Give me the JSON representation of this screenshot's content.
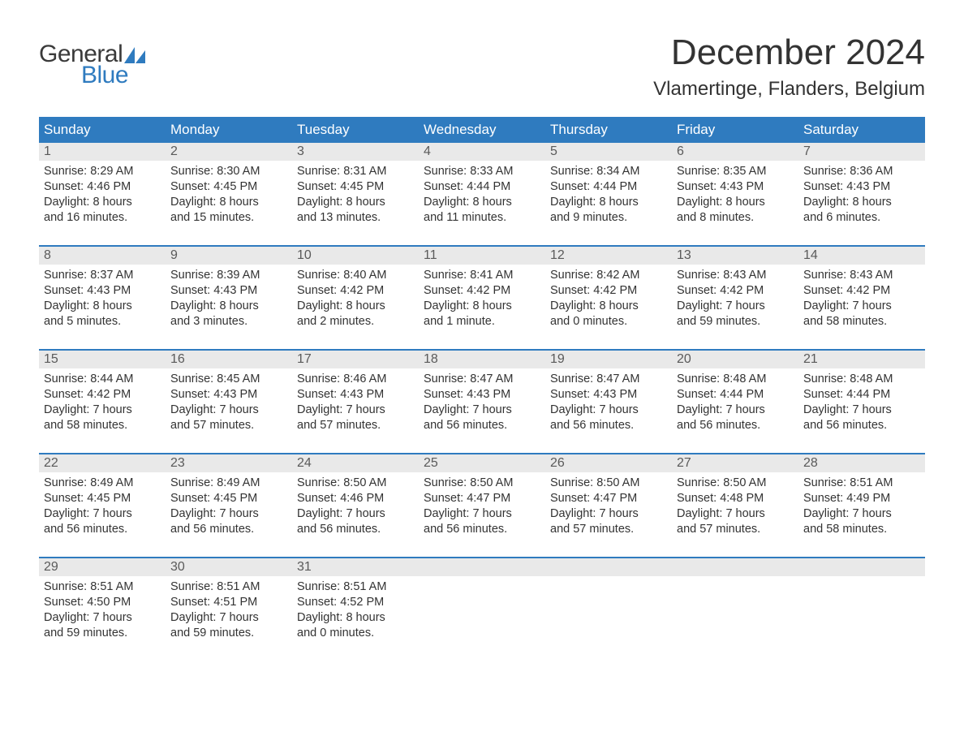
{
  "brand": {
    "word1": "General",
    "word2": "Blue",
    "sail_color": "#2f7bbf",
    "text_gray": "#3a3a3a"
  },
  "title": "December 2024",
  "location": "Vlamertinge, Flanders, Belgium",
  "colors": {
    "header_bg": "#2f7bbf",
    "header_text": "#ffffff",
    "daynum_bg": "#e9e9e9",
    "daynum_text": "#5a5a5a",
    "body_text": "#333333",
    "week_border": "#2f7bbf",
    "page_bg": "#ffffff"
  },
  "fonts": {
    "title_size": 44,
    "location_size": 24,
    "header_size": 17,
    "body_size": 14.5
  },
  "day_headers": [
    "Sunday",
    "Monday",
    "Tuesday",
    "Wednesday",
    "Thursday",
    "Friday",
    "Saturday"
  ],
  "weeks": [
    [
      {
        "n": "1",
        "sr": "Sunrise: 8:29 AM",
        "ss": "Sunset: 4:46 PM",
        "d1": "Daylight: 8 hours",
        "d2": "and 16 minutes."
      },
      {
        "n": "2",
        "sr": "Sunrise: 8:30 AM",
        "ss": "Sunset: 4:45 PM",
        "d1": "Daylight: 8 hours",
        "d2": "and 15 minutes."
      },
      {
        "n": "3",
        "sr": "Sunrise: 8:31 AM",
        "ss": "Sunset: 4:45 PM",
        "d1": "Daylight: 8 hours",
        "d2": "and 13 minutes."
      },
      {
        "n": "4",
        "sr": "Sunrise: 8:33 AM",
        "ss": "Sunset: 4:44 PM",
        "d1": "Daylight: 8 hours",
        "d2": "and 11 minutes."
      },
      {
        "n": "5",
        "sr": "Sunrise: 8:34 AM",
        "ss": "Sunset: 4:44 PM",
        "d1": "Daylight: 8 hours",
        "d2": "and 9 minutes."
      },
      {
        "n": "6",
        "sr": "Sunrise: 8:35 AM",
        "ss": "Sunset: 4:43 PM",
        "d1": "Daylight: 8 hours",
        "d2": "and 8 minutes."
      },
      {
        "n": "7",
        "sr": "Sunrise: 8:36 AM",
        "ss": "Sunset: 4:43 PM",
        "d1": "Daylight: 8 hours",
        "d2": "and 6 minutes."
      }
    ],
    [
      {
        "n": "8",
        "sr": "Sunrise: 8:37 AM",
        "ss": "Sunset: 4:43 PM",
        "d1": "Daylight: 8 hours",
        "d2": "and 5 minutes."
      },
      {
        "n": "9",
        "sr": "Sunrise: 8:39 AM",
        "ss": "Sunset: 4:43 PM",
        "d1": "Daylight: 8 hours",
        "d2": "and 3 minutes."
      },
      {
        "n": "10",
        "sr": "Sunrise: 8:40 AM",
        "ss": "Sunset: 4:42 PM",
        "d1": "Daylight: 8 hours",
        "d2": "and 2 minutes."
      },
      {
        "n": "11",
        "sr": "Sunrise: 8:41 AM",
        "ss": "Sunset: 4:42 PM",
        "d1": "Daylight: 8 hours",
        "d2": "and 1 minute."
      },
      {
        "n": "12",
        "sr": "Sunrise: 8:42 AM",
        "ss": "Sunset: 4:42 PM",
        "d1": "Daylight: 8 hours",
        "d2": "and 0 minutes."
      },
      {
        "n": "13",
        "sr": "Sunrise: 8:43 AM",
        "ss": "Sunset: 4:42 PM",
        "d1": "Daylight: 7 hours",
        "d2": "and 59 minutes."
      },
      {
        "n": "14",
        "sr": "Sunrise: 8:43 AM",
        "ss": "Sunset: 4:42 PM",
        "d1": "Daylight: 7 hours",
        "d2": "and 58 minutes."
      }
    ],
    [
      {
        "n": "15",
        "sr": "Sunrise: 8:44 AM",
        "ss": "Sunset: 4:42 PM",
        "d1": "Daylight: 7 hours",
        "d2": "and 58 minutes."
      },
      {
        "n": "16",
        "sr": "Sunrise: 8:45 AM",
        "ss": "Sunset: 4:43 PM",
        "d1": "Daylight: 7 hours",
        "d2": "and 57 minutes."
      },
      {
        "n": "17",
        "sr": "Sunrise: 8:46 AM",
        "ss": "Sunset: 4:43 PM",
        "d1": "Daylight: 7 hours",
        "d2": "and 57 minutes."
      },
      {
        "n": "18",
        "sr": "Sunrise: 8:47 AM",
        "ss": "Sunset: 4:43 PM",
        "d1": "Daylight: 7 hours",
        "d2": "and 56 minutes."
      },
      {
        "n": "19",
        "sr": "Sunrise: 8:47 AM",
        "ss": "Sunset: 4:43 PM",
        "d1": "Daylight: 7 hours",
        "d2": "and 56 minutes."
      },
      {
        "n": "20",
        "sr": "Sunrise: 8:48 AM",
        "ss": "Sunset: 4:44 PM",
        "d1": "Daylight: 7 hours",
        "d2": "and 56 minutes."
      },
      {
        "n": "21",
        "sr": "Sunrise: 8:48 AM",
        "ss": "Sunset: 4:44 PM",
        "d1": "Daylight: 7 hours",
        "d2": "and 56 minutes."
      }
    ],
    [
      {
        "n": "22",
        "sr": "Sunrise: 8:49 AM",
        "ss": "Sunset: 4:45 PM",
        "d1": "Daylight: 7 hours",
        "d2": "and 56 minutes."
      },
      {
        "n": "23",
        "sr": "Sunrise: 8:49 AM",
        "ss": "Sunset: 4:45 PM",
        "d1": "Daylight: 7 hours",
        "d2": "and 56 minutes."
      },
      {
        "n": "24",
        "sr": "Sunrise: 8:50 AM",
        "ss": "Sunset: 4:46 PM",
        "d1": "Daylight: 7 hours",
        "d2": "and 56 minutes."
      },
      {
        "n": "25",
        "sr": "Sunrise: 8:50 AM",
        "ss": "Sunset: 4:47 PM",
        "d1": "Daylight: 7 hours",
        "d2": "and 56 minutes."
      },
      {
        "n": "26",
        "sr": "Sunrise: 8:50 AM",
        "ss": "Sunset: 4:47 PM",
        "d1": "Daylight: 7 hours",
        "d2": "and 57 minutes."
      },
      {
        "n": "27",
        "sr": "Sunrise: 8:50 AM",
        "ss": "Sunset: 4:48 PM",
        "d1": "Daylight: 7 hours",
        "d2": "and 57 minutes."
      },
      {
        "n": "28",
        "sr": "Sunrise: 8:51 AM",
        "ss": "Sunset: 4:49 PM",
        "d1": "Daylight: 7 hours",
        "d2": "and 58 minutes."
      }
    ],
    [
      {
        "n": "29",
        "sr": "Sunrise: 8:51 AM",
        "ss": "Sunset: 4:50 PM",
        "d1": "Daylight: 7 hours",
        "d2": "and 59 minutes."
      },
      {
        "n": "30",
        "sr": "Sunrise: 8:51 AM",
        "ss": "Sunset: 4:51 PM",
        "d1": "Daylight: 7 hours",
        "d2": "and 59 minutes."
      },
      {
        "n": "31",
        "sr": "Sunrise: 8:51 AM",
        "ss": "Sunset: 4:52 PM",
        "d1": "Daylight: 8 hours",
        "d2": "and 0 minutes."
      },
      {
        "empty": true
      },
      {
        "empty": true
      },
      {
        "empty": true
      },
      {
        "empty": true
      }
    ]
  ]
}
